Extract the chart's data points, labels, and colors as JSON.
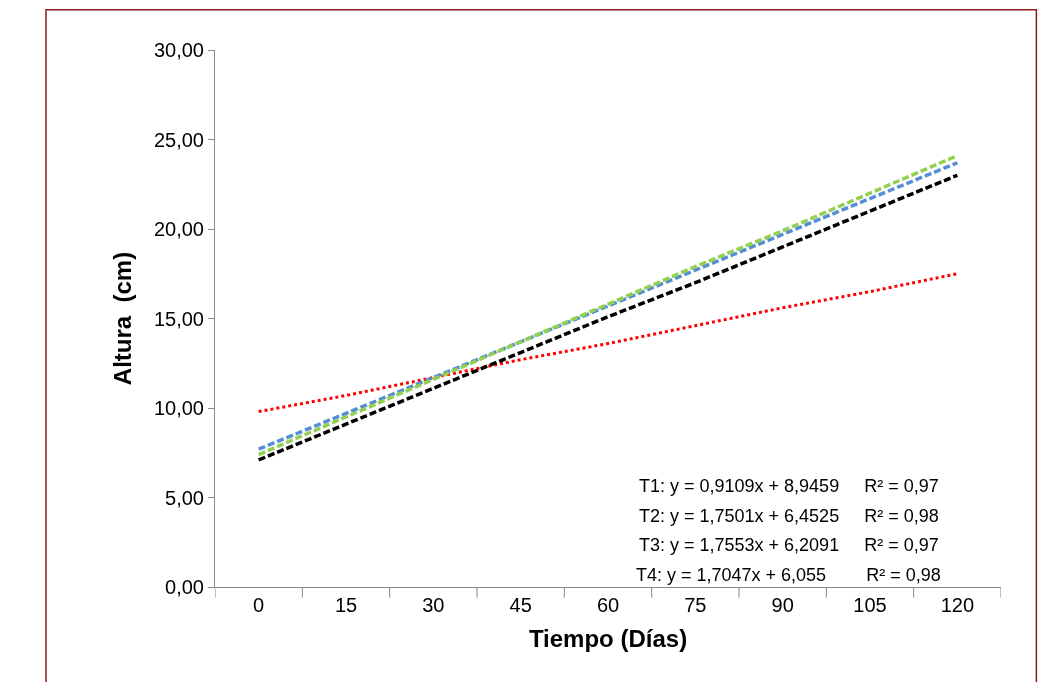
{
  "chart_data": {
    "type": "line",
    "xlabel": "Tiempo (Días)",
    "ylabel": "Altura  (cm)",
    "categories": [
      "0",
      "15",
      "30",
      "45",
      "60",
      "75",
      "90",
      "105",
      "120"
    ],
    "series": [
      {
        "color": "#ff0000",
        "line_style": "dotted",
        "values": [
          9.8,
          10.7,
          11.7,
          12.7,
          13.6,
          14.6,
          15.6,
          16.5,
          17.5
        ]
      },
      {
        "color": "#558ed5",
        "line_style": "dashed",
        "values": [
          7.7,
          9.7,
          11.7,
          13.7,
          15.7,
          17.7,
          19.7,
          21.7,
          23.7
        ]
      },
      {
        "color": "#92d050",
        "line_style": "dashed",
        "values": [
          7.4,
          9.5,
          11.6,
          13.7,
          15.8,
          17.9,
          19.9,
          22.0,
          24.1
        ]
      },
      {
        "color": "#000000",
        "line_style": "dashed",
        "values": [
          7.1,
          9.1,
          11.1,
          13.1,
          15.1,
          17.0,
          19.0,
          21.0,
          23.0
        ]
      }
    ],
    "ylim": [
      0,
      30
    ],
    "yticks": [
      {
        "value": 0,
        "label": "0,00"
      },
      {
        "value": 5,
        "label": "5,00"
      },
      {
        "value": 10,
        "label": "10,00"
      },
      {
        "value": 15,
        "label": "15,00"
      },
      {
        "value": 20,
        "label": "20,00"
      },
      {
        "value": 25,
        "label": "25,00"
      },
      {
        "value": 30,
        "label": "30,00"
      }
    ],
    "annotations": [
      "T1: y = 0,9109x + 8,9459     R² = 0,97",
      "T2: y = 1,7501x + 6,4525     R² = 0,98",
      "T3: y = 1,7553x + 6,2091     R² = 0,97",
      "T4: y = 1,7047x + 6,055        R² = 0,98"
    ],
    "marker": "none"
  }
}
